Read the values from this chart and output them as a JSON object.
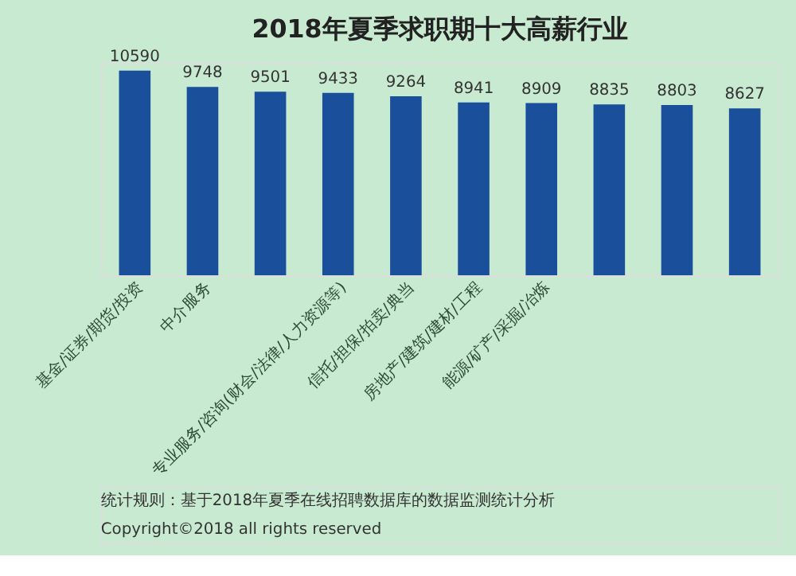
{
  "chart_data": {
    "type": "bar",
    "title": "2018年夏季求职期十大高薪行业",
    "categories": [
      "基金/证券/期货/投资",
      "中介服务",
      null,
      "专业服务/咨询(财会/法律/人力资源等)",
      "信托/担保/拍卖/典当",
      "房地产/建筑/建材/工程",
      "能源/矿产/采掘/冶炼",
      null,
      null,
      null
    ],
    "values": [
      10590,
      9748,
      9501,
      9433,
      9264,
      8941,
      8909,
      8835,
      8803,
      8627
    ],
    "color": "#1a4f9c",
    "data_labels": true,
    "grid": false,
    "annotations": [
      "统计规则：基于2018年夏季在线招聘数据库的数据监测统计分析",
      "Copyright©2018 all rights reserved"
    ]
  }
}
